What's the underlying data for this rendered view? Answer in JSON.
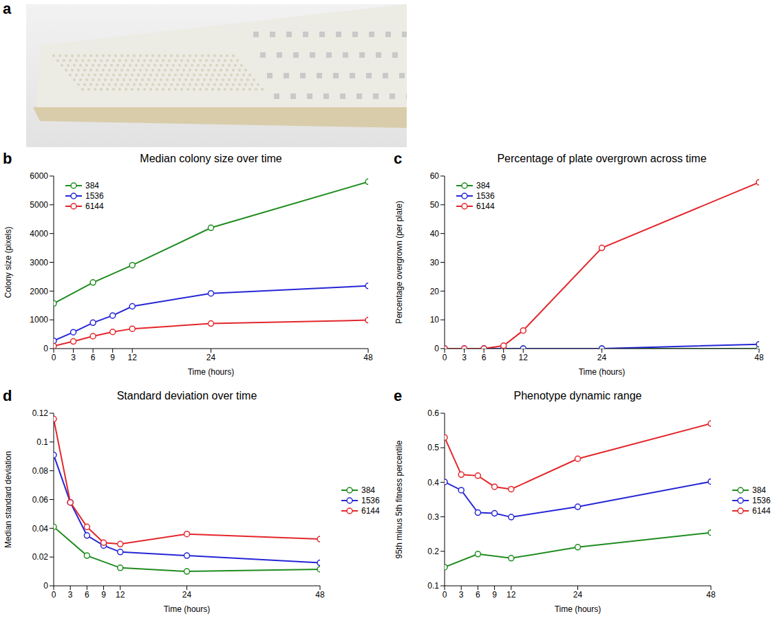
{
  "photo": {
    "panel": "a"
  },
  "chart_data": [
    {
      "panel": "b",
      "type": "line",
      "title": "Median colony size over time",
      "x_label": "Time (hours)",
      "y_label": "Colony size (pixels)",
      "xlim": [
        0,
        48
      ],
      "xticks": [
        0,
        3,
        6,
        9,
        12,
        24,
        48
      ],
      "ylim": [
        0,
        6000
      ],
      "yticks": [
        0,
        1000,
        2000,
        3000,
        4000,
        5000,
        6000
      ],
      "grid": false,
      "legend": "upper left",
      "marker": "circle",
      "series": [
        {
          "name": "384",
          "color": "#1e8c1e",
          "x": [
            0,
            6,
            12,
            24,
            48
          ],
          "values": [
            1570,
            2300,
            2900,
            4200,
            5800
          ]
        },
        {
          "name": "1536",
          "color": "#2525d6",
          "x": [
            0,
            3,
            6,
            9,
            12,
            24,
            48
          ],
          "values": [
            270,
            570,
            900,
            1150,
            1470,
            1920,
            2180
          ]
        },
        {
          "name": "6144",
          "color": "#e3262b",
          "x": [
            0,
            3,
            6,
            9,
            12,
            24,
            48
          ],
          "values": [
            90,
            250,
            430,
            580,
            690,
            870,
            990
          ]
        }
      ]
    },
    {
      "panel": "c",
      "type": "line",
      "title": "Percentage of plate overgrown across time",
      "x_label": "Time (hours)",
      "y_label": "Percentage overgrown (per plate)",
      "xlim": [
        0,
        48
      ],
      "xticks": [
        0,
        3,
        6,
        9,
        12,
        24,
        48
      ],
      "ylim": [
        0,
        60
      ],
      "yticks": [
        0,
        10,
        20,
        30,
        40,
        50,
        60
      ],
      "grid": false,
      "legend": "upper left",
      "marker": "circle",
      "series": [
        {
          "name": "384",
          "color": "#1e8c1e",
          "x": [
            0,
            6,
            12,
            24,
            48
          ],
          "values": [
            0,
            0,
            0,
            0,
            0
          ]
        },
        {
          "name": "1536",
          "color": "#2525d6",
          "x": [
            0,
            3,
            6,
            9,
            12,
            24,
            48
          ],
          "values": [
            0,
            0,
            0,
            0,
            0,
            0,
            1.5
          ]
        },
        {
          "name": "6144",
          "color": "#e3262b",
          "x": [
            0,
            3,
            6,
            9,
            12,
            24,
            48
          ],
          "values": [
            0,
            0,
            0,
            1,
            6.3,
            35,
            57.8
          ]
        }
      ]
    },
    {
      "panel": "d",
      "type": "line",
      "title": "Standard deviation over time",
      "x_label": "Time (hours)",
      "y_label": "Median standard deviation",
      "xlim": [
        0,
        48
      ],
      "xticks": [
        0,
        3,
        6,
        9,
        12,
        24,
        48
      ],
      "ylim": [
        0,
        0.12
      ],
      "yticks": [
        0,
        0.02,
        0.04,
        0.06,
        0.08,
        0.1,
        0.12
      ],
      "grid": false,
      "legend": "right",
      "marker": "circle",
      "series": [
        {
          "name": "384",
          "color": "#1e8c1e",
          "x": [
            0,
            6,
            12,
            24,
            48
          ],
          "values": [
            0.041,
            0.021,
            0.0125,
            0.01,
            0.0115
          ]
        },
        {
          "name": "1536",
          "color": "#2525d6",
          "x": [
            0,
            3,
            6,
            9,
            12,
            24,
            48
          ],
          "values": [
            0.091,
            0.058,
            0.035,
            0.028,
            0.0235,
            0.021,
            0.016
          ]
        },
        {
          "name": "6144",
          "color": "#e3262b",
          "x": [
            0,
            3,
            6,
            9,
            12,
            24,
            48
          ],
          "values": [
            0.116,
            0.058,
            0.041,
            0.03,
            0.029,
            0.036,
            0.0325
          ]
        }
      ]
    },
    {
      "panel": "e",
      "type": "line",
      "title": "Phenotype dynamic range",
      "x_label": "Time (hours)",
      "y_label": "95th minus 5th fitness percentile",
      "xlim": [
        0,
        48
      ],
      "xticks": [
        0,
        3,
        6,
        9,
        12,
        24,
        48
      ],
      "ylim": [
        0.1,
        0.6
      ],
      "yticks": [
        0.1,
        0.2,
        0.3,
        0.4,
        0.5,
        0.6
      ],
      "grid": false,
      "legend": "right",
      "marker": "circle",
      "series": [
        {
          "name": "384",
          "color": "#1e8c1e",
          "x": [
            0,
            6,
            12,
            24,
            48
          ],
          "values": [
            0.154,
            0.192,
            0.18,
            0.212,
            0.254
          ]
        },
        {
          "name": "1536",
          "color": "#2525d6",
          "x": [
            0,
            3,
            6,
            9,
            12,
            24,
            48
          ],
          "values": [
            0.401,
            0.377,
            0.312,
            0.31,
            0.299,
            0.329,
            0.402
          ]
        },
        {
          "name": "6144",
          "color": "#e3262b",
          "x": [
            0,
            3,
            6,
            9,
            12,
            24,
            48
          ],
          "values": [
            0.53,
            0.422,
            0.419,
            0.387,
            0.38,
            0.468,
            0.57
          ]
        }
      ]
    }
  ]
}
